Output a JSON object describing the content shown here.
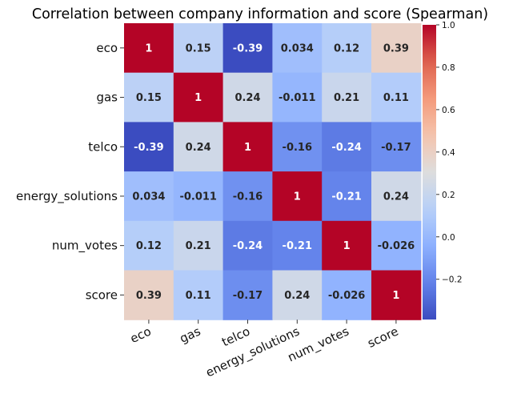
{
  "chart_data": {
    "type": "heatmap",
    "title": "Correlation between company information and score (Spearman)",
    "rows": [
      "eco",
      "gas",
      "telco",
      "energy_solutions",
      "num_votes",
      "score"
    ],
    "columns": [
      "eco",
      "gas",
      "telco",
      "energy_solutions",
      "num_votes",
      "score"
    ],
    "values": [
      [
        1,
        0.15,
        -0.39,
        0.034,
        0.12,
        0.39
      ],
      [
        0.15,
        1,
        0.24,
        -0.011,
        0.21,
        0.11
      ],
      [
        -0.39,
        0.24,
        1,
        -0.16,
        -0.24,
        -0.17
      ],
      [
        0.034,
        -0.011,
        -0.16,
        1,
        -0.21,
        0.24
      ],
      [
        0.12,
        0.21,
        -0.24,
        -0.21,
        1,
        -0.026
      ],
      [
        0.39,
        0.11,
        -0.17,
        0.24,
        -0.026,
        1
      ]
    ],
    "labels": [
      [
        "1",
        "0.15",
        "-0.39",
        "0.034",
        "0.12",
        "0.39"
      ],
      [
        "0.15",
        "1",
        "0.24",
        "-0.011",
        "0.21",
        "0.11"
      ],
      [
        "-0.39",
        "0.24",
        "1",
        "-0.16",
        "-0.24",
        "-0.17"
      ],
      [
        "0.034",
        "-0.011",
        "-0.16",
        "1",
        "-0.21",
        "0.24"
      ],
      [
        "0.12",
        "0.21",
        "-0.24",
        "-0.21",
        "1",
        "-0.026"
      ],
      [
        "0.39",
        "0.11",
        "-0.17",
        "0.24",
        "-0.026",
        "1"
      ]
    ],
    "colormap": "coolwarm",
    "colorbar": {
      "range": [
        -0.39,
        1.0
      ],
      "ticks": [
        -0.2,
        0.0,
        0.2,
        0.4,
        0.6,
        0.8,
        1.0
      ],
      "tick_labels": [
        "−0.2",
        "0.0",
        "0.2",
        "0.4",
        "0.6",
        "0.8",
        "1.0"
      ]
    },
    "colors": {
      "min": "#3b4cc0",
      "mid": "#dddddd",
      "max": "#b40426",
      "text_dark": "#262626",
      "text_light": "#ffffff"
    }
  }
}
